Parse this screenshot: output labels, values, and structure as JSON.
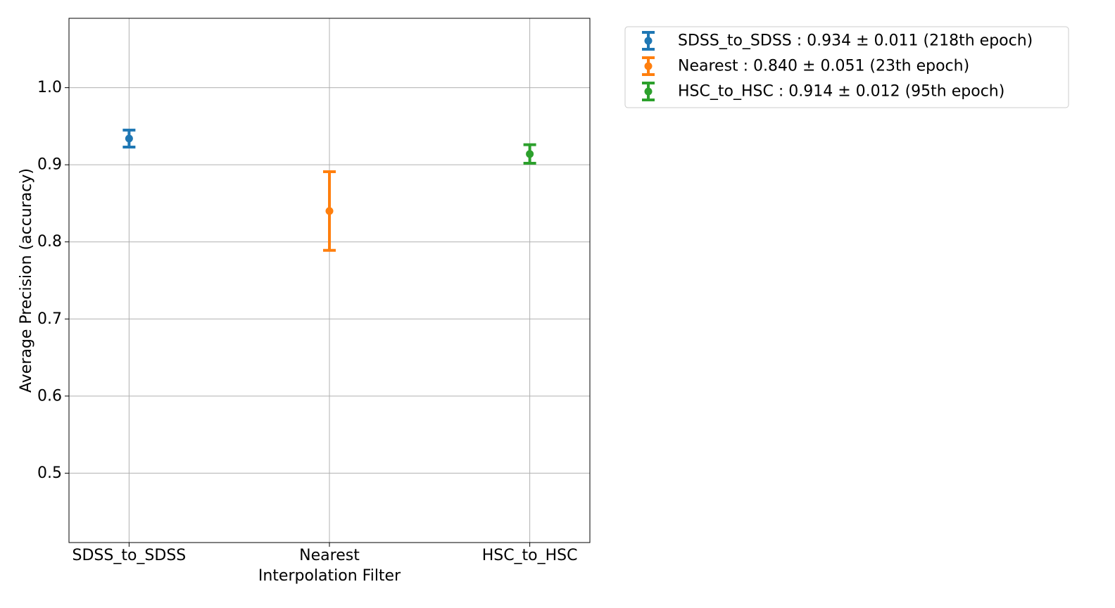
{
  "chart_data": {
    "type": "scatter",
    "subtype": "errorbar",
    "title": "",
    "xlabel": "Interpolation Filter",
    "ylabel": "Average Precision (accuracy)",
    "categories": [
      "SDSS_to_SDSS",
      "Nearest",
      "HSC_to_HSC"
    ],
    "ylim": [
      0.41,
      1.09
    ],
    "yticks": [
      0.5,
      0.6,
      0.7,
      0.8,
      0.9,
      1.0
    ],
    "ytick_labels": [
      "0.5",
      "0.6",
      "0.7",
      "0.8",
      "0.9",
      "1.0"
    ],
    "grid": true,
    "legend_position": "outside-top-right",
    "series": [
      {
        "name": "SDSS_to_SDSS : 0.934 ± 0.011 (218th epoch)",
        "category": "SDSS_to_SDSS",
        "value": 0.934,
        "error": 0.011,
        "color": "#1f77b4"
      },
      {
        "name": "Nearest  : 0.840 ± 0.051 (23th epoch)",
        "category": "Nearest",
        "value": 0.84,
        "error": 0.051,
        "color": "#ff7f0e"
      },
      {
        "name": "HSC_to_HSC : 0.914 ± 0.012 (95th epoch)",
        "category": "HSC_to_HSC",
        "value": 0.914,
        "error": 0.012,
        "color": "#2ca02c"
      }
    ]
  }
}
